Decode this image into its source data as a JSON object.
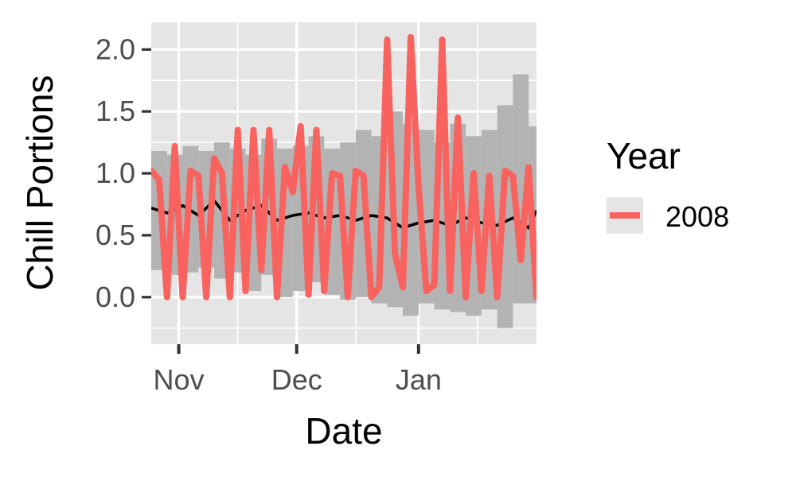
{
  "chart_data": {
    "type": "line",
    "xlabel": "Date",
    "ylabel": "Chill Portions",
    "x_ticks": [
      "Nov",
      "Dec",
      "Jan"
    ],
    "y_ticks": [
      "0.0",
      "0.5",
      "1.0",
      "1.5",
      "2.0"
    ],
    "ylim": [
      -0.38,
      2.22
    ],
    "xlim": [
      "2008-10-25",
      "2009-01-31"
    ],
    "grid": true,
    "legend": {
      "title": "Year",
      "placement": "right",
      "entries": [
        "2008"
      ]
    },
    "colors": {
      "panel": "#e5e5e5",
      "grid": "#ffffff",
      "series": "#f8635f",
      "band": "#b3b3b3",
      "mean": "#000000"
    },
    "series": [
      {
        "name": "2008",
        "x": [
          "2008-10-25",
          "2008-10-27",
          "2008-10-29",
          "2008-10-31",
          "2008-11-02",
          "2008-11-04",
          "2008-11-06",
          "2008-11-08",
          "2008-11-10",
          "2008-11-12",
          "2008-11-14",
          "2008-11-16",
          "2008-11-18",
          "2008-11-20",
          "2008-11-22",
          "2008-11-24",
          "2008-11-26",
          "2008-11-28",
          "2008-11-30",
          "2008-12-02",
          "2008-12-04",
          "2008-12-06",
          "2008-12-08",
          "2008-12-10",
          "2008-12-12",
          "2008-12-14",
          "2008-12-16",
          "2008-12-18",
          "2008-12-20",
          "2008-12-22",
          "2008-12-24",
          "2008-12-26",
          "2008-12-28",
          "2008-12-30",
          "2009-01-01",
          "2009-01-03",
          "2009-01-05",
          "2009-01-07",
          "2009-01-09",
          "2009-01-11",
          "2009-01-13",
          "2009-01-15",
          "2009-01-17",
          "2009-01-19",
          "2009-01-21",
          "2009-01-23",
          "2009-01-25",
          "2009-01-27",
          "2009-01-29",
          "2009-01-31"
        ],
        "y": [
          1.02,
          0.95,
          0.0,
          1.22,
          0.0,
          1.02,
          0.98,
          0.0,
          1.12,
          1.0,
          0.0,
          1.35,
          0.05,
          1.35,
          0.22,
          1.35,
          0.0,
          1.05,
          0.85,
          1.38,
          0.02,
          1.35,
          0.05,
          1.0,
          0.98,
          0.0,
          1.02,
          0.98,
          0.0,
          0.08,
          2.08,
          0.35,
          0.08,
          2.1,
          0.9,
          0.05,
          0.1,
          2.08,
          0.05,
          1.45,
          0.0,
          1.0,
          0.05,
          0.98,
          0.0,
          1.02,
          0.98,
          0.3,
          1.05,
          0.0
        ]
      }
    ],
    "mean": {
      "x": [
        "2008-10-25",
        "2008-10-29",
        "2008-11-02",
        "2008-11-06",
        "2008-11-10",
        "2008-11-14",
        "2008-11-18",
        "2008-11-22",
        "2008-11-26",
        "2008-11-30",
        "2008-12-04",
        "2008-12-08",
        "2008-12-12",
        "2008-12-16",
        "2008-12-20",
        "2008-12-24",
        "2008-12-28",
        "2009-01-01",
        "2009-01-05",
        "2009-01-09",
        "2009-01-13",
        "2009-01-17",
        "2009-01-21",
        "2009-01-25",
        "2009-01-29",
        "2009-01-31"
      ],
      "y": [
        0.72,
        0.68,
        0.74,
        0.66,
        0.78,
        0.62,
        0.7,
        0.74,
        0.62,
        0.66,
        0.68,
        0.64,
        0.66,
        0.62,
        0.66,
        0.64,
        0.56,
        0.6,
        0.62,
        0.58,
        0.64,
        0.6,
        0.58,
        0.64,
        0.56,
        0.7
      ]
    },
    "band": {
      "x": [
        "2008-10-25",
        "2008-10-29",
        "2008-11-02",
        "2008-11-06",
        "2008-11-10",
        "2008-11-14",
        "2008-11-18",
        "2008-11-22",
        "2008-11-26",
        "2008-11-30",
        "2008-12-04",
        "2008-12-08",
        "2008-12-12",
        "2008-12-16",
        "2008-12-20",
        "2008-12-24",
        "2008-12-28",
        "2009-01-01",
        "2009-01-05",
        "2009-01-09",
        "2009-01-13",
        "2009-01-17",
        "2009-01-21",
        "2009-01-25",
        "2009-01-29",
        "2009-01-31"
      ],
      "low": [
        0.22,
        0.18,
        0.2,
        0.24,
        0.15,
        0.2,
        0.05,
        0.18,
        0.0,
        0.05,
        0.12,
        0.02,
        -0.02,
        0.0,
        -0.05,
        -0.08,
        -0.15,
        -0.05,
        -0.1,
        -0.12,
        -0.15,
        -0.1,
        -0.25,
        -0.05,
        -0.05,
        -0.02
      ],
      "high": [
        1.18,
        1.15,
        1.22,
        1.18,
        1.25,
        1.2,
        1.15,
        1.28,
        1.2,
        1.22,
        1.3,
        1.2,
        1.25,
        1.35,
        1.3,
        1.5,
        1.4,
        1.35,
        1.25,
        1.4,
        1.3,
        1.35,
        1.55,
        1.8,
        1.38,
        1.3
      ]
    }
  }
}
